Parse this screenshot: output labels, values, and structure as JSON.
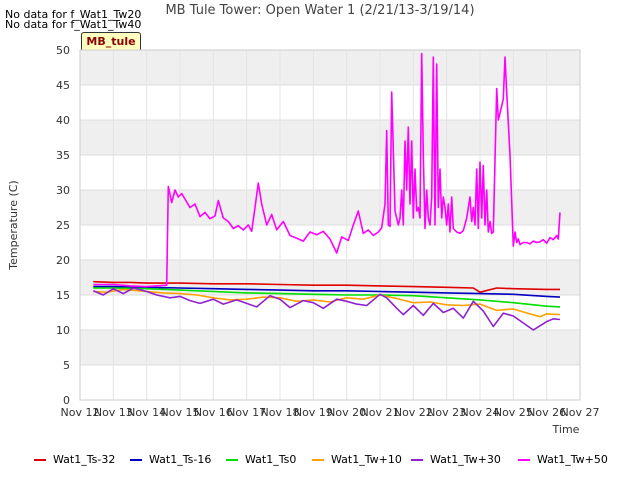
{
  "header": {
    "no_data_1": "No data for f_Wat1_Tw20",
    "no_data_2": "No data for f_Wat1_Tw40",
    "site_tag": "MB_tule"
  },
  "chart_data": {
    "type": "line",
    "title": "MB Tule Tower: Open Water 1 (2/21/13-3/19/14)",
    "xlabel": "Time",
    "ylabel": "Temperature (C)",
    "ylim": [
      0,
      50
    ],
    "xlim": [
      12,
      27
    ],
    "yticks": [
      0,
      5,
      10,
      15,
      20,
      25,
      30,
      35,
      40,
      45,
      50
    ],
    "xticks": [
      {
        "v": 12,
        "label": "Nov 12"
      },
      {
        "v": 13,
        "label": "Nov 13"
      },
      {
        "v": 14,
        "label": "Nov 14"
      },
      {
        "v": 15,
        "label": "Nov 15"
      },
      {
        "v": 16,
        "label": "Nov 16"
      },
      {
        "v": 17,
        "label": "Nov 17"
      },
      {
        "v": 18,
        "label": "Nov 18"
      },
      {
        "v": 19,
        "label": "Nov 19"
      },
      {
        "v": 20,
        "label": "Nov 20"
      },
      {
        "v": 21,
        "label": "Nov 21"
      },
      {
        "v": 22,
        "label": "Nov 22"
      },
      {
        "v": 23,
        "label": "Nov 23"
      },
      {
        "v": 24,
        "label": "Nov 24"
      },
      {
        "v": 25,
        "label": "Nov 25"
      },
      {
        "v": 26,
        "label": "Nov 26"
      },
      {
        "v": 27,
        "label": "Nov 27"
      }
    ],
    "grid": true,
    "series": [
      {
        "name": "Wat1_Ts-32",
        "color": "#e00000",
        "x": [
          12.4,
          13.0,
          13.5,
          14.0,
          15.0,
          16.0,
          17.0,
          18.0,
          19.0,
          20.0,
          21.0,
          22.0,
          23.0,
          23.8,
          24.0,
          24.5,
          25.0,
          26.0,
          26.4
        ],
        "y": [
          16.9,
          16.8,
          16.8,
          16.7,
          16.7,
          16.6,
          16.6,
          16.5,
          16.4,
          16.4,
          16.3,
          16.2,
          16.1,
          16.0,
          15.4,
          16.0,
          15.9,
          15.8,
          15.8
        ]
      },
      {
        "name": "Wat1_Ts-16",
        "color": "#0000c0",
        "x": [
          12.4,
          13.0,
          14.0,
          15.0,
          16.0,
          17.0,
          18.0,
          19.0,
          20.0,
          21.0,
          22.0,
          23.0,
          24.0,
          25.0,
          26.0,
          26.4
        ],
        "y": [
          16.2,
          16.2,
          16.1,
          16.0,
          15.9,
          15.8,
          15.7,
          15.6,
          15.6,
          15.5,
          15.4,
          15.3,
          15.2,
          15.1,
          14.8,
          14.7
        ]
      },
      {
        "name": "Wat1_Ts0",
        "color": "#00dd00",
        "x": [
          12.4,
          13.0,
          14.0,
          15.0,
          16.0,
          17.0,
          18.0,
          19.0,
          20.0,
          21.0,
          22.0,
          23.0,
          24.0,
          25.0,
          26.0,
          26.4
        ],
        "y": [
          16.0,
          16.0,
          15.9,
          15.7,
          15.5,
          15.3,
          15.2,
          15.1,
          15.0,
          15.0,
          14.9,
          14.6,
          14.3,
          13.9,
          13.4,
          13.3
        ]
      },
      {
        "name": "Wat1_Tw+10",
        "color": "#ffa000",
        "x": [
          12.4,
          12.8,
          13.3,
          14.0,
          14.5,
          15.0,
          15.5,
          16.0,
          16.5,
          17.0,
          17.5,
          18.0,
          18.5,
          19.0,
          19.5,
          20.0,
          20.5,
          21.0,
          21.5,
          22.0,
          22.5,
          23.0,
          23.5,
          24.0,
          24.5,
          25.0,
          25.5,
          25.8,
          26.0,
          26.4
        ],
        "y": [
          15.5,
          15.4,
          15.8,
          15.5,
          15.3,
          15.2,
          15.0,
          14.6,
          14.3,
          14.4,
          14.7,
          14.6,
          14.1,
          14.3,
          14.0,
          14.6,
          14.4,
          15.0,
          14.5,
          13.9,
          14.0,
          13.6,
          13.5,
          13.7,
          12.8,
          13.0,
          12.3,
          11.9,
          12.3,
          12.2
        ]
      },
      {
        "name": "Wat1_Tw+30",
        "color": "#9020d0",
        "x": [
          12.4,
          12.7,
          13.0,
          13.3,
          13.6,
          14.0,
          14.3,
          14.7,
          15.0,
          15.3,
          15.6,
          16.0,
          16.3,
          16.7,
          17.0,
          17.3,
          17.7,
          18.0,
          18.3,
          18.7,
          19.0,
          19.3,
          19.7,
          20.0,
          20.3,
          20.6,
          21.0,
          21.2,
          21.5,
          21.7,
          22.0,
          22.3,
          22.6,
          22.9,
          23.2,
          23.5,
          23.8,
          24.1,
          24.4,
          24.7,
          25.0,
          25.3,
          25.6,
          25.8,
          26.0,
          26.2,
          26.4
        ],
        "y": [
          15.6,
          15.0,
          15.9,
          15.2,
          16.0,
          15.5,
          15.0,
          14.6,
          14.8,
          14.2,
          13.8,
          14.4,
          13.7,
          14.3,
          13.8,
          13.3,
          14.9,
          14.4,
          13.2,
          14.2,
          13.9,
          13.1,
          14.4,
          14.1,
          13.7,
          13.5,
          15.1,
          14.6,
          13.1,
          12.2,
          13.5,
          12.1,
          13.8,
          12.5,
          13.1,
          11.7,
          14.1,
          12.7,
          10.5,
          12.4,
          12.0,
          11.0,
          10.0,
          10.6,
          11.2,
          11.6,
          11.5
        ]
      },
      {
        "name": "Wat1_Tw+50",
        "color": "#ff00ff",
        "x": [
          12.4,
          13.0,
          13.5,
          14.0,
          14.6,
          14.65,
          14.75,
          14.85,
          14.95,
          15.05,
          15.15,
          15.3,
          15.45,
          15.6,
          15.75,
          15.9,
          16.05,
          16.15,
          16.3,
          16.45,
          16.6,
          16.75,
          16.9,
          17.05,
          17.15,
          17.25,
          17.35,
          17.45,
          17.6,
          17.75,
          17.9,
          18.1,
          18.3,
          18.5,
          18.7,
          18.9,
          19.1,
          19.3,
          19.5,
          19.7,
          19.85,
          20.05,
          20.2,
          20.35,
          20.5,
          20.65,
          20.8,
          20.95,
          21.05,
          21.15,
          21.2,
          21.25,
          21.3,
          21.35,
          21.45,
          21.55,
          21.6,
          21.65,
          21.7,
          21.75,
          21.8,
          21.85,
          21.9,
          21.95,
          22.0,
          22.05,
          22.1,
          22.15,
          22.2,
          22.25,
          22.3,
          22.35,
          22.4,
          22.45,
          22.5,
          22.55,
          22.6,
          22.65,
          22.7,
          22.75,
          22.8,
          22.85,
          22.9,
          22.95,
          23.0,
          23.05,
          23.1,
          23.15,
          23.2,
          23.3,
          23.4,
          23.5,
          23.6,
          23.7,
          23.75,
          23.8,
          23.85,
          23.9,
          23.95,
          24.0,
          24.05,
          24.1,
          24.15,
          24.2,
          24.25,
          24.3,
          24.35,
          24.4,
          24.5,
          24.55,
          24.6,
          24.65,
          24.7,
          24.75,
          24.8,
          24.9,
          25.0,
          25.05,
          25.1,
          25.15,
          25.2,
          25.3,
          25.4,
          25.5,
          25.6,
          25.7,
          25.8,
          25.9,
          26.0,
          26.1,
          26.2,
          26.3,
          26.35,
          26.4
        ],
        "y": [
          16.5,
          16.5,
          16.3,
          16.2,
          16.4,
          30.5,
          28.2,
          30.0,
          29.0,
          29.5,
          28.7,
          27.5,
          28.0,
          26.2,
          26.8,
          25.9,
          26.3,
          28.5,
          26.0,
          25.5,
          24.5,
          24.9,
          24.3,
          25.0,
          24.1,
          27.5,
          31.0,
          28.0,
          25.0,
          26.5,
          24.3,
          25.5,
          23.5,
          23.1,
          22.7,
          24.0,
          23.6,
          24.1,
          23.0,
          21.0,
          23.3,
          22.8,
          25.0,
          27.0,
          23.8,
          24.3,
          23.5,
          24.0,
          24.6,
          28.0,
          38.5,
          25.0,
          24.8,
          44.0,
          27.0,
          25.0,
          26.0,
          30.0,
          25.0,
          37.0,
          30.0,
          39.0,
          28.0,
          37.0,
          26.0,
          33.0,
          27.0,
          27.5,
          26.0,
          49.5,
          35.0,
          24.5,
          30.0,
          26.0,
          25.0,
          29.0,
          49.0,
          25.0,
          48.0,
          27.5,
          33.0,
          26.0,
          29.0,
          27.5,
          25.0,
          28.0,
          24.0,
          29.0,
          24.5,
          24.0,
          23.8,
          24.2,
          26.0,
          29.0,
          25.5,
          27.5,
          25.0,
          33.0,
          24.5,
          34.0,
          26.0,
          33.5,
          25.0,
          30.0,
          24.0,
          25.5,
          23.8,
          24.0,
          44.5,
          40.0,
          41.0,
          42.0,
          43.0,
          49.0,
          44.0,
          35.0,
          22.0,
          24.0,
          22.5,
          23.0,
          22.2,
          22.5,
          22.5,
          22.3,
          22.7,
          22.5,
          22.6,
          22.9,
          22.4,
          23.2,
          22.9,
          23.5,
          23.0,
          26.8
        ]
      }
    ]
  }
}
